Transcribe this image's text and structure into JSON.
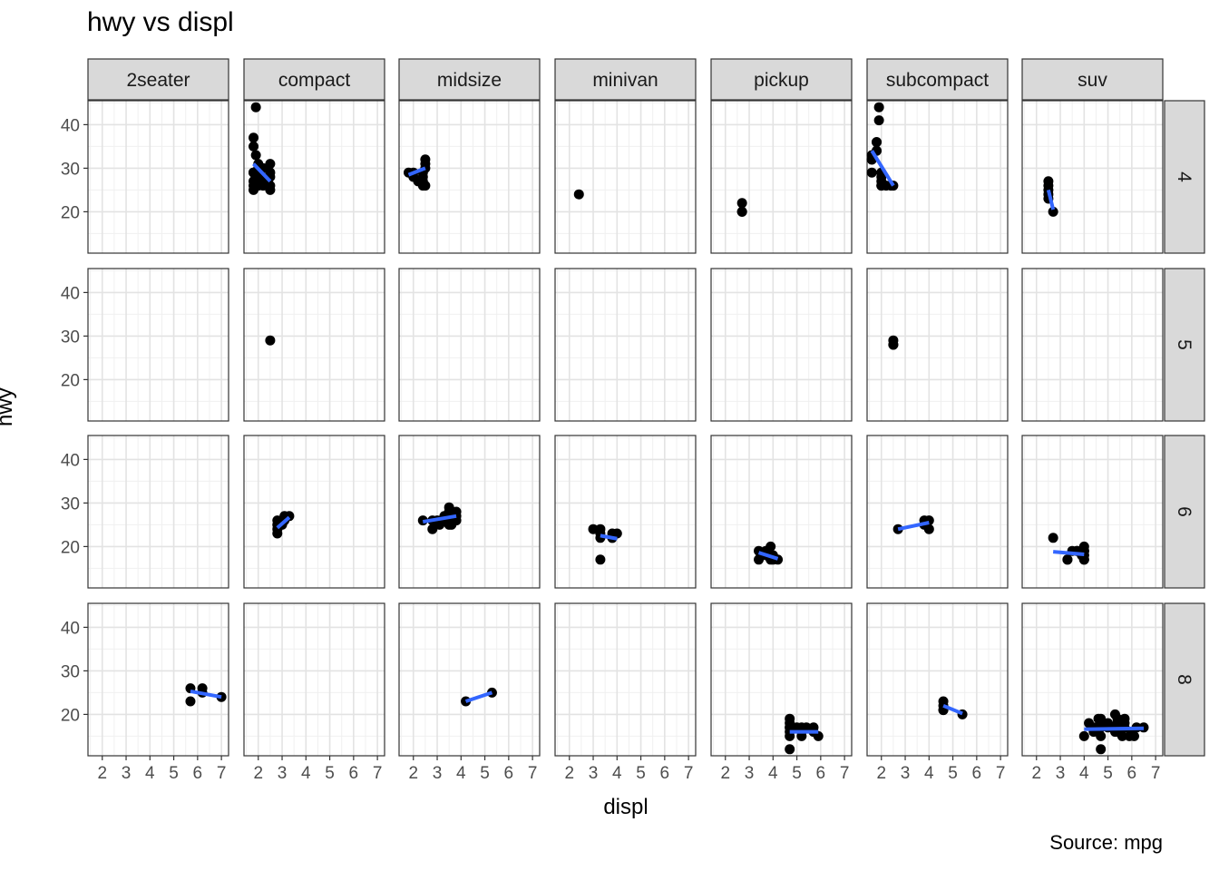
{
  "chart_data": {
    "type": "scatter",
    "title": "hwy vs displ",
    "xlabel": "displ",
    "ylabel": "hwy",
    "caption": "Source: mpg",
    "col_facets": [
      "2seater",
      "compact",
      "midsize",
      "minivan",
      "pickup",
      "subcompact",
      "suv"
    ],
    "row_facets": [
      "4",
      "5",
      "6",
      "8"
    ],
    "xlim": [
      1.4,
      7.3
    ],
    "ylim": [
      10.5,
      45.5
    ],
    "x_ticks": [
      2,
      3,
      4,
      5,
      6,
      7
    ],
    "y_ticks": [
      20,
      30,
      40
    ],
    "grid": true,
    "panels": [
      {
        "col": "compact",
        "row": "4",
        "points": [
          [
            1.8,
            29
          ],
          [
            1.8,
            29
          ],
          [
            2.0,
            31
          ],
          [
            2.0,
            30
          ],
          [
            1.8,
            26
          ],
          [
            1.8,
            25
          ],
          [
            2.0,
            28
          ],
          [
            2.0,
            28
          ],
          [
            1.8,
            27
          ],
          [
            1.9,
            44
          ],
          [
            1.9,
            33
          ],
          [
            1.8,
            37
          ],
          [
            1.8,
            35
          ],
          [
            2.0,
            29
          ],
          [
            2.0,
            26
          ],
          [
            2.2,
            26
          ],
          [
            2.2,
            27
          ],
          [
            2.4,
            30
          ],
          [
            2.4,
            27
          ],
          [
            2.2,
            30
          ],
          [
            2.5,
            25
          ],
          [
            2.5,
            26
          ],
          [
            2.5,
            31
          ],
          [
            2.5,
            28
          ],
          [
            2.5,
            29
          ],
          [
            2.0,
            27
          ],
          [
            2.0,
            28
          ]
        ],
        "fit": [
          [
            1.8,
            31
          ],
          [
            2.5,
            27
          ]
        ]
      },
      {
        "col": "midsize",
        "row": "4",
        "points": [
          [
            1.8,
            29
          ],
          [
            2.0,
            28
          ],
          [
            2.0,
            29
          ],
          [
            2.2,
            27
          ],
          [
            2.4,
            27
          ],
          [
            2.4,
            26
          ],
          [
            2.4,
            28
          ],
          [
            2.5,
            31
          ],
          [
            2.5,
            30
          ],
          [
            2.5,
            32
          ],
          [
            2.5,
            26
          ],
          [
            2.4,
            29
          ]
        ],
        "fit": [
          [
            1.8,
            28.5
          ],
          [
            2.5,
            30
          ]
        ]
      },
      {
        "col": "minivan",
        "row": "4",
        "points": [
          [
            2.4,
            24
          ]
        ],
        "fit": []
      },
      {
        "col": "pickup",
        "row": "4",
        "points": [
          [
            2.7,
            20
          ],
          [
            2.7,
            22
          ],
          [
            2.7,
            20
          ]
        ],
        "fit": []
      },
      {
        "col": "subcompact",
        "row": "4",
        "points": [
          [
            1.6,
            33
          ],
          [
            1.6,
            32
          ],
          [
            1.6,
            32
          ],
          [
            1.6,
            29
          ],
          [
            1.6,
            32
          ],
          [
            1.8,
            34
          ],
          [
            1.8,
            36
          ],
          [
            1.8,
            36
          ],
          [
            1.9,
            44
          ],
          [
            1.9,
            41
          ],
          [
            2.0,
            26
          ],
          [
            2.0,
            29
          ],
          [
            2.0,
            26
          ],
          [
            2.0,
            27
          ],
          [
            2.2,
            26
          ],
          [
            2.5,
            26
          ],
          [
            2.4,
            26
          ],
          [
            2.0,
            28
          ]
        ],
        "fit": [
          [
            1.6,
            34
          ],
          [
            2.5,
            26
          ]
        ]
      },
      {
        "col": "suv",
        "row": "4",
        "points": [
          [
            2.5,
            26
          ],
          [
            2.5,
            25
          ],
          [
            2.5,
            24
          ],
          [
            2.5,
            27
          ],
          [
            2.5,
            23
          ],
          [
            2.7,
            20
          ]
        ],
        "fit": [
          [
            2.5,
            25
          ],
          [
            2.7,
            20.5
          ]
        ]
      },
      {
        "col": "compact",
        "row": "5",
        "points": [
          [
            2.5,
            29
          ]
        ],
        "fit": []
      },
      {
        "col": "subcompact",
        "row": "5",
        "points": [
          [
            2.5,
            28
          ],
          [
            2.5,
            29
          ],
          [
            2.5,
            28
          ]
        ],
        "fit": []
      },
      {
        "col": "compact",
        "row": "6",
        "points": [
          [
            2.8,
            23
          ],
          [
            2.8,
            24
          ],
          [
            2.8,
            25
          ],
          [
            2.8,
            26
          ],
          [
            3.1,
            26
          ],
          [
            3.1,
            27
          ],
          [
            3.3,
            27
          ],
          [
            3.0,
            26
          ],
          [
            3.0,
            25
          ]
        ],
        "fit": [
          [
            2.8,
            24.3
          ],
          [
            3.3,
            26.7
          ]
        ]
      },
      {
        "col": "midsize",
        "row": "6",
        "points": [
          [
            2.4,
            26
          ],
          [
            2.8,
            26
          ],
          [
            2.8,
            24
          ],
          [
            3.0,
            26
          ],
          [
            3.1,
            25
          ],
          [
            3.3,
            26
          ],
          [
            3.3,
            27
          ],
          [
            3.5,
            26
          ],
          [
            3.5,
            29
          ],
          [
            3.5,
            28
          ],
          [
            3.6,
            25
          ],
          [
            3.5,
            27
          ],
          [
            3.8,
            26
          ],
          [
            3.8,
            28
          ],
          [
            3.8,
            27
          ],
          [
            3.5,
            25
          ]
        ],
        "fit": [
          [
            2.4,
            25.7
          ],
          [
            3.8,
            27
          ]
        ]
      },
      {
        "col": "minivan",
        "row": "6",
        "points": [
          [
            3.0,
            24
          ],
          [
            3.3,
            24
          ],
          [
            3.3,
            22
          ],
          [
            3.3,
            17
          ],
          [
            3.3,
            23
          ],
          [
            3.8,
            23
          ],
          [
            3.8,
            22
          ],
          [
            4.0,
            23
          ],
          [
            3.8,
            22
          ]
        ],
        "fit": [
          [
            3.3,
            22.5
          ],
          [
            4.0,
            21.8
          ]
        ]
      },
      {
        "col": "pickup",
        "row": "6",
        "points": [
          [
            3.4,
            19
          ],
          [
            3.4,
            17
          ],
          [
            3.7,
            19
          ],
          [
            3.7,
            18
          ],
          [
            3.9,
            17
          ],
          [
            3.9,
            20
          ],
          [
            4.0,
            17
          ],
          [
            4.2,
            17
          ],
          [
            4.0,
            18
          ],
          [
            3.9,
            18
          ]
        ],
        "fit": [
          [
            3.4,
            18.6
          ],
          [
            4.2,
            17.2
          ]
        ]
      },
      {
        "col": "subcompact",
        "row": "6",
        "points": [
          [
            2.7,
            24
          ],
          [
            3.8,
            26
          ],
          [
            3.8,
            25
          ],
          [
            4.0,
            26
          ],
          [
            4.0,
            24
          ]
        ],
        "fit": [
          [
            2.7,
            24
          ],
          [
            4.0,
            25.5
          ]
        ]
      },
      {
        "col": "suv",
        "row": "6",
        "points": [
          [
            2.7,
            22
          ],
          [
            3.3,
            17
          ],
          [
            3.3,
            17
          ],
          [
            3.5,
            19
          ],
          [
            3.7,
            19
          ],
          [
            3.7,
            19
          ],
          [
            3.9,
            19
          ],
          [
            3.9,
            18
          ],
          [
            4.0,
            17
          ],
          [
            4.0,
            17
          ],
          [
            4.0,
            18
          ],
          [
            4.0,
            19
          ],
          [
            4.0,
            20
          ],
          [
            4.0,
            19
          ],
          [
            4.0,
            18
          ],
          [
            4.0,
            19
          ]
        ],
        "fit": [
          [
            2.7,
            18.8
          ],
          [
            4.0,
            18.2
          ]
        ]
      },
      {
        "col": "2seater",
        "row": "8",
        "points": [
          [
            5.7,
            26
          ],
          [
            5.7,
            23
          ],
          [
            6.2,
            26
          ],
          [
            6.2,
            25
          ],
          [
            7.0,
            24
          ]
        ],
        "fit": [
          [
            5.7,
            25.3
          ],
          [
            7.0,
            24
          ]
        ]
      },
      {
        "col": "midsize",
        "row": "8",
        "points": [
          [
            4.2,
            23
          ],
          [
            5.3,
            25
          ]
        ],
        "fit": [
          [
            4.2,
            23
          ],
          [
            5.3,
            25
          ]
        ]
      },
      {
        "col": "pickup",
        "row": "8",
        "points": [
          [
            4.7,
            12
          ],
          [
            4.7,
            15
          ],
          [
            4.7,
            16
          ],
          [
            4.7,
            17
          ],
          [
            4.7,
            19
          ],
          [
            4.7,
            18
          ],
          [
            5.2,
            17
          ],
          [
            5.2,
            15
          ],
          [
            5.2,
            16
          ],
          [
            5.7,
            17
          ],
          [
            5.9,
            15
          ],
          [
            5.7,
            16
          ],
          [
            5.0,
            17
          ],
          [
            4.7,
            17
          ],
          [
            5.4,
            17
          ]
        ],
        "fit": [
          [
            4.7,
            16
          ],
          [
            5.9,
            16
          ]
        ]
      },
      {
        "col": "subcompact",
        "row": "8",
        "points": [
          [
            4.6,
            21
          ],
          [
            4.6,
            22
          ],
          [
            4.6,
            23
          ],
          [
            5.4,
            20
          ],
          [
            4.6,
            21
          ]
        ],
        "fit": [
          [
            4.6,
            22
          ],
          [
            5.4,
            20.2
          ]
        ]
      },
      {
        "col": "suv",
        "row": "8",
        "points": [
          [
            4.0,
            15
          ],
          [
            4.2,
            18
          ],
          [
            4.4,
            17
          ],
          [
            4.6,
            17
          ],
          [
            4.6,
            16
          ],
          [
            4.7,
            12
          ],
          [
            4.7,
            17
          ],
          [
            4.7,
            18
          ],
          [
            4.7,
            19
          ],
          [
            5.3,
            20
          ],
          [
            5.4,
            18
          ],
          [
            5.4,
            19
          ],
          [
            5.7,
            18
          ],
          [
            5.7,
            17
          ],
          [
            6.5,
            17
          ],
          [
            5.3,
            16
          ],
          [
            5.6,
            15
          ],
          [
            6.1,
            15
          ],
          [
            5.0,
            18
          ],
          [
            5.0,
            17
          ],
          [
            4.7,
            15
          ],
          [
            5.9,
            15
          ],
          [
            6.0,
            16
          ],
          [
            5.4,
            16
          ],
          [
            4.4,
            16
          ],
          [
            4.6,
            19
          ],
          [
            5.3,
            17
          ],
          [
            5.7,
            19
          ],
          [
            6.2,
            17
          ]
        ],
        "fit": [
          [
            4.0,
            16.6
          ],
          [
            6.5,
            16.8
          ]
        ]
      }
    ]
  }
}
